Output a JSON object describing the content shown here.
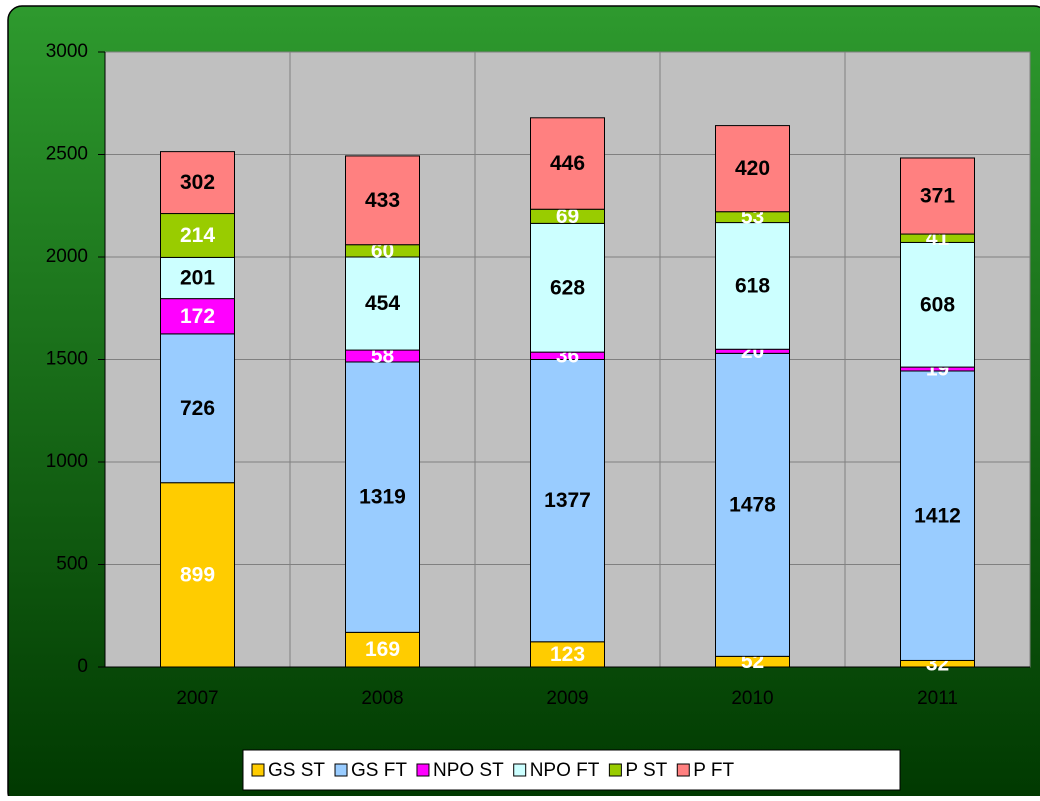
{
  "chart_data": {
    "type": "stacked_bar",
    "categories": [
      "2007",
      "2008",
      "2009",
      "2010",
      "2011"
    ],
    "series": [
      {
        "name": "GS ST",
        "color": "#ffcc00",
        "label_color": "#ffffff",
        "values": [
          899,
          169,
          123,
          52,
          32
        ]
      },
      {
        "name": "GS FT",
        "color": "#99ccff",
        "label_color": "#000000",
        "values": [
          726,
          1319,
          1377,
          1478,
          1412
        ]
      },
      {
        "name": "NPO ST",
        "color": "#ff00ff",
        "label_color": "#ffffff",
        "values": [
          172,
          58,
          36,
          20,
          19
        ]
      },
      {
        "name": "NPO FT",
        "color": "#ccffff",
        "label_color": "#000000",
        "values": [
          201,
          454,
          628,
          618,
          608
        ]
      },
      {
        "name": "P ST",
        "color": "#99cc00",
        "label_color": "#ffffff",
        "values": [
          214,
          60,
          69,
          53,
          41
        ]
      },
      {
        "name": "P FT",
        "color": "#ff8080",
        "label_color": "#000000",
        "values": [
          302,
          433,
          446,
          420,
          371
        ]
      }
    ],
    "ylim": [
      0,
      3000
    ],
    "yticks": [
      0,
      500,
      1000,
      1500,
      2000,
      2500,
      3000
    ],
    "grid": true,
    "legend": "bottom"
  }
}
